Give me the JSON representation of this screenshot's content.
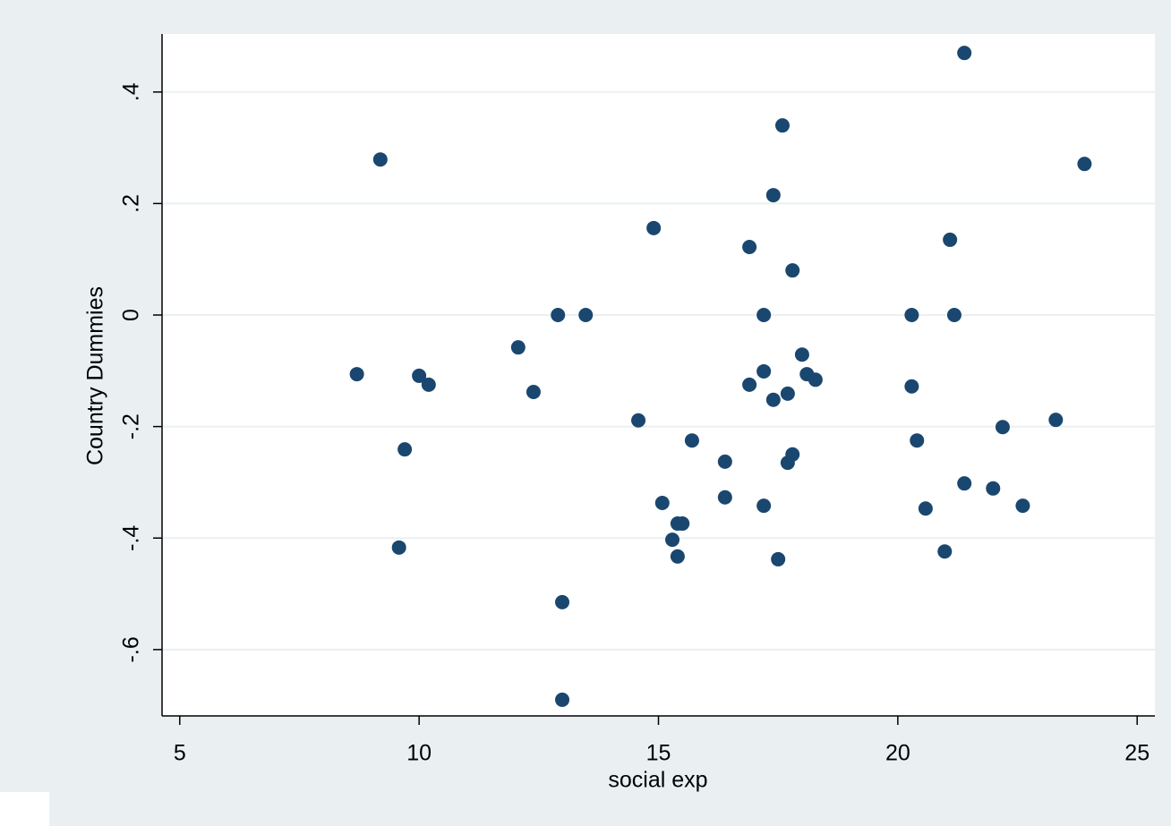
{
  "chart_data": {
    "type": "scatter",
    "x_label": "social exp",
    "y_label": "Country Dummies",
    "color": "#1a476f",
    "grid": true,
    "xlim": [
      4.63,
      25.37
    ],
    "ylim": [
      -0.719,
      0.504
    ],
    "xticks": [
      5,
      10,
      15,
      20,
      25
    ],
    "yticks": [
      {
        "value": -0.6,
        "label": "-.6"
      },
      {
        "value": -0.4,
        "label": "-.4"
      },
      {
        "value": -0.2,
        "label": "-.2"
      },
      0,
      {
        "value": 0.2,
        "label": ".2"
      },
      {
        "value": 0.4,
        "label": ".4"
      }
    ],
    "x": [
      8.7,
      9.19,
      9.58,
      9.7,
      10.0,
      10.2,
      12.07,
      12.39,
      12.9,
      12.99,
      12.99,
      13.48,
      14.58,
      14.9,
      15.08,
      15.29,
      15.4,
      15.4,
      15.5,
      15.7,
      16.39,
      16.39,
      16.9,
      16.9,
      17.2,
      17.2,
      17.2,
      17.4,
      17.4,
      17.5,
      17.59,
      17.7,
      17.7,
      17.8,
      17.8,
      18.0,
      18.1,
      18.28,
      20.29,
      20.29,
      20.4,
      20.58,
      20.98,
      21.09,
      21.18,
      21.39,
      21.39,
      21.99,
      22.19,
      22.61,
      23.3,
      23.9
    ],
    "y": [
      -0.106,
      0.279,
      -0.417,
      -0.241,
      -0.109,
      -0.125,
      -0.058,
      -0.138,
      0,
      -0.515,
      -0.69,
      0,
      -0.189,
      0.156,
      -0.337,
      -0.403,
      -0.374,
      -0.433,
      -0.374,
      -0.225,
      -0.263,
      -0.327,
      0.122,
      -0.125,
      0,
      -0.101,
      -0.342,
      0.215,
      -0.152,
      -0.438,
      0.34,
      -0.141,
      -0.265,
      0.08,
      -0.25,
      -0.071,
      -0.106,
      -0.116,
      0,
      -0.128,
      -0.225,
      -0.347,
      -0.424,
      0.135,
      0,
      0.47,
      -0.302,
      -0.311,
      -0.201,
      -0.342,
      -0.188,
      0.271
    ]
  }
}
